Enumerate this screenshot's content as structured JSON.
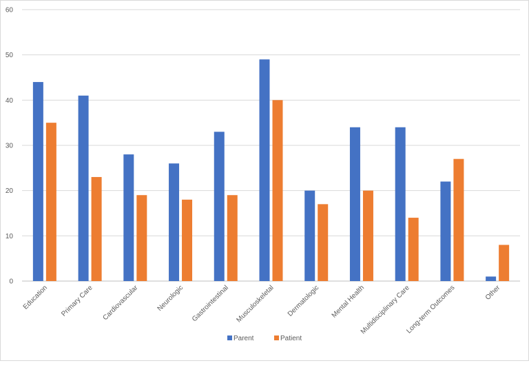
{
  "chart_data": {
    "type": "bar",
    "title": "",
    "xlabel": "",
    "ylabel": "",
    "ylim": [
      0,
      60
    ],
    "yticks": [
      0,
      10,
      20,
      30,
      40,
      50,
      60
    ],
    "grid": true,
    "legend_position": "bottom",
    "categories": [
      "Education",
      "Primary Care",
      "Cardiovascular",
      "Neurologic",
      "Gastrointestinal",
      "Musculoskeletal",
      "Dermatologic",
      "Mental Health",
      "Multidisciplinary Care",
      "Long-term Outcomes",
      "Other"
    ],
    "series": [
      {
        "name": "Parent",
        "color": "#4472C4",
        "values": [
          44,
          41,
          28,
          26,
          33,
          49,
          20,
          34,
          34,
          22,
          1
        ]
      },
      {
        "name": "Patient",
        "color": "#ED7D31",
        "values": [
          35,
          23,
          19,
          18,
          19,
          40,
          17,
          20,
          14,
          27,
          8
        ]
      }
    ]
  }
}
